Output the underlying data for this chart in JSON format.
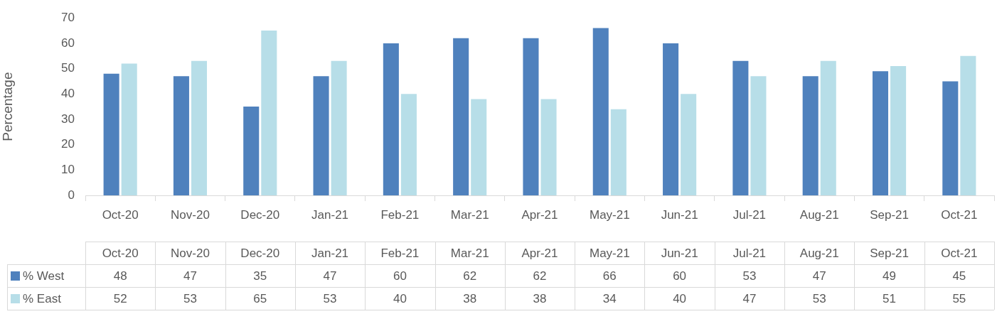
{
  "chart_data": {
    "type": "bar",
    "ylabel": "Percentage",
    "categories": [
      "Oct-20",
      "Nov-20",
      "Dec-20",
      "Jan-21",
      "Feb-21",
      "Mar-21",
      "Apr-21",
      "May-21",
      "Jun-21",
      "Jul-21",
      "Aug-21",
      "Sep-21",
      "Oct-21"
    ],
    "series": [
      {
        "name": "% West",
        "color": "#4f81bd",
        "values": [
          48,
          47,
          35,
          47,
          60,
          62,
          62,
          66,
          60,
          53,
          47,
          49,
          45
        ]
      },
      {
        "name": "% East",
        "color": "#b7dee8",
        "values": [
          52,
          53,
          65,
          53,
          40,
          38,
          38,
          34,
          40,
          47,
          53,
          51,
          55
        ]
      }
    ],
    "ylim": [
      0,
      70
    ],
    "yticks": [
      0,
      10,
      20,
      30,
      40,
      50,
      60,
      70
    ],
    "legend": "bottom",
    "data_labels": true
  }
}
